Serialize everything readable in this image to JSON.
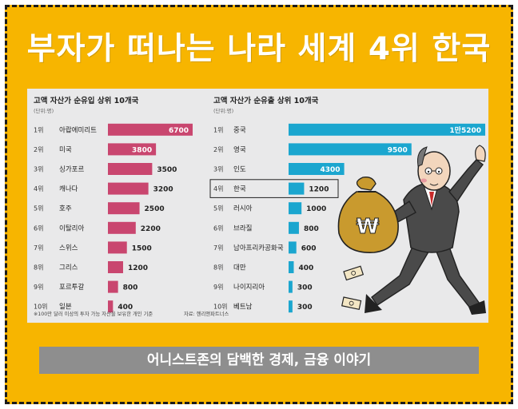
{
  "header": {
    "title": "부자가 떠나는 나라 세계 4위 한국"
  },
  "footer": {
    "caption": "어니스트존의 담백한 경제, 금융 이야기"
  },
  "colors": {
    "background": "#f7b500",
    "inflow_bar": "#c9466f",
    "outflow_bar": "#1ba6cf",
    "panel": "#e9e9ea"
  },
  "chart_data": [
    {
      "type": "bar",
      "orientation": "horizontal",
      "title": "고액 자산가 순유입 상위 10개국",
      "unit": "(단위:명)",
      "ranks": [
        "1위",
        "2위",
        "3위",
        "4위",
        "5위",
        "6위",
        "7위",
        "8위",
        "9위",
        "10위"
      ],
      "categories": [
        "아랍에미리트",
        "미국",
        "싱가포르",
        "캐나다",
        "호주",
        "이탈리아",
        "스위스",
        "그리스",
        "포르투갈",
        "일본"
      ],
      "values": [
        6700,
        3800,
        3500,
        3200,
        2500,
        2200,
        1500,
        1200,
        800,
        400
      ],
      "value_labels": [
        "6700",
        "3800",
        "3500",
        "3200",
        "2500",
        "2200",
        "1500",
        "1200",
        "800",
        "400"
      ],
      "color": "#c9466f",
      "footnote": "※100만 달러 이상의 투자 가능 자산을 보유한 개인 기준",
      "source": "자료: 헨리앤파트너스"
    },
    {
      "type": "bar",
      "orientation": "horizontal",
      "title": "고액 자산가 순유출 상위 10개국",
      "unit": "(단위:명)",
      "ranks": [
        "1위",
        "2위",
        "3위",
        "4위",
        "5위",
        "6위",
        "7위",
        "8위",
        "9위",
        "10위"
      ],
      "categories": [
        "중국",
        "영국",
        "인도",
        "한국",
        "러시아",
        "브라질",
        "남아프리카공화국",
        "대만",
        "나이지리아",
        "베트남"
      ],
      "values": [
        15200,
        9500,
        4300,
        1200,
        1000,
        800,
        600,
        400,
        300,
        300
      ],
      "value_labels": [
        "1만5200",
        "9500",
        "4300",
        "1200",
        "1000",
        "800",
        "600",
        "400",
        "300",
        "300"
      ],
      "color": "#1ba6cf",
      "highlight_index": 3
    }
  ]
}
